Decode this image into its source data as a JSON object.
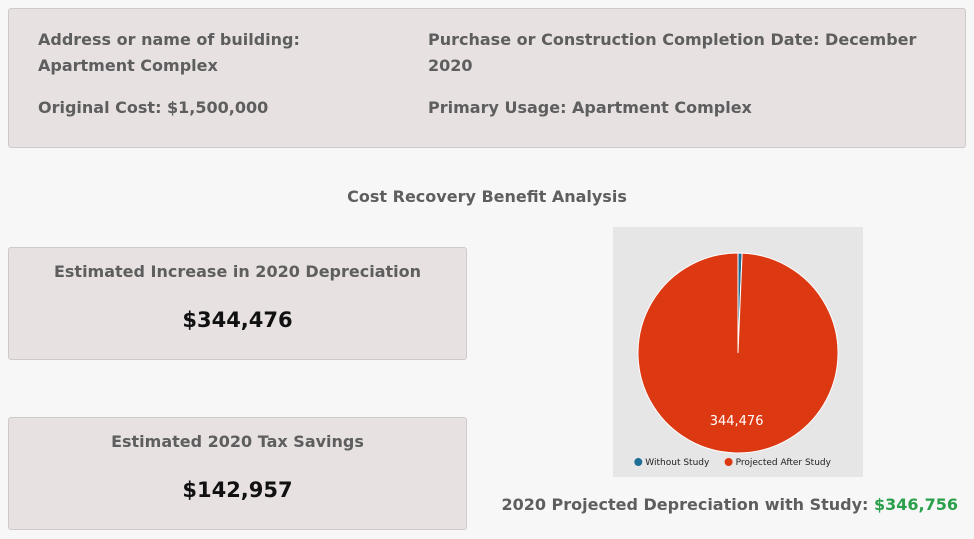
{
  "property": {
    "address": "Address or name of building: Apartment Complex",
    "completion_date": "Purchase or Construction Completion Date: December 2020",
    "original_cost": "Original Cost: $1,500,000",
    "primary_usage": "Primary Usage: Apartment Complex"
  },
  "analysis": {
    "title": "Cost Recovery Benefit Analysis"
  },
  "metrics": [
    {
      "label": "Estimated Increase in 2020 Depreciation",
      "value": "$344,476"
    },
    {
      "label": "Estimated 2020 Tax Savings",
      "value": "$142,957"
    }
  ],
  "projected": {
    "label": "2020 Projected Depreciation with Study:",
    "value": "$346,756"
  },
  "chart_data": {
    "type": "pie",
    "categories": [
      "Without Study",
      "Projected After Study"
    ],
    "values": [
      2280,
      344476
    ],
    "data_labels": [
      "",
      "344,476"
    ],
    "colors": [
      "#1f6f97",
      "#dc3912"
    ],
    "legend_position": "bottom"
  }
}
